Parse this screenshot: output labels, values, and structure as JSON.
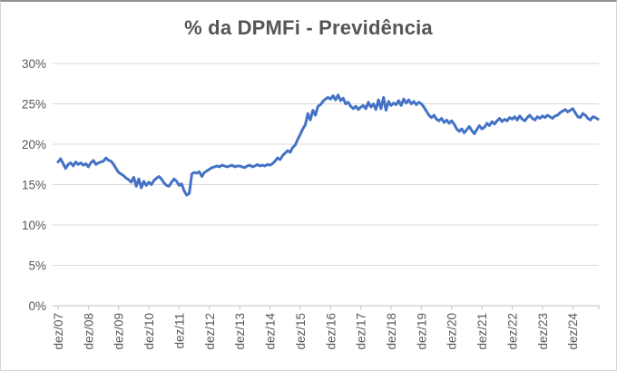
{
  "chart_data": {
    "type": "line",
    "title": "% da DPMFi - Previdência",
    "xlabel": "",
    "ylabel": "",
    "ylim": [
      0,
      30
    ],
    "y_tick_labels": [
      "0%",
      "5%",
      "10%",
      "15%",
      "20%",
      "25%",
      "30%"
    ],
    "y_tick_values": [
      0,
      5,
      10,
      15,
      20,
      25,
      30
    ],
    "x_tick_labels": [
      "dez/07",
      "dez/08",
      "dez/09",
      "dez/10",
      "dez/11",
      "dez/12",
      "dez/13",
      "dez/14",
      "dez/15",
      "dez/16",
      "dez/17",
      "dez/18",
      "dez/19",
      "dez/20",
      "dez/21",
      "dez/22",
      "dez/23",
      "dez/24"
    ],
    "x_label_interval": 12,
    "x_frequency": "monthly",
    "x_first_point": "dez/07",
    "grid": "horizontal",
    "legend": "none",
    "series_name": "% da DPMFi - Previdência",
    "values": [
      17.8,
      18.2,
      17.6,
      17.0,
      17.5,
      17.7,
      17.3,
      17.8,
      17.5,
      17.7,
      17.4,
      17.6,
      17.2,
      17.7,
      18.0,
      17.5,
      17.7,
      17.8,
      17.9,
      18.3,
      18.0,
      17.9,
      17.5,
      17.0,
      16.5,
      16.3,
      16.1,
      15.8,
      15.6,
      15.3,
      15.9,
      14.8,
      15.7,
      14.6,
      15.4,
      14.9,
      15.3,
      15.0,
      15.5,
      15.8,
      16.0,
      15.7,
      15.2,
      14.9,
      14.8,
      15.3,
      15.7,
      15.4,
      14.9,
      15.1,
      14.2,
      13.7,
      13.9,
      16.3,
      16.5,
      16.4,
      16.6,
      16.0,
      16.5,
      16.7,
      16.9,
      17.1,
      17.2,
      17.3,
      17.2,
      17.4,
      17.3,
      17.2,
      17.3,
      17.4,
      17.2,
      17.3,
      17.3,
      17.2,
      17.1,
      17.3,
      17.4,
      17.2,
      17.3,
      17.5,
      17.3,
      17.4,
      17.3,
      17.5,
      17.4,
      17.6,
      17.9,
      18.3,
      18.1,
      18.6,
      18.9,
      19.2,
      19.0,
      19.6,
      19.9,
      20.6,
      21.2,
      21.9,
      22.4,
      23.8,
      23.0,
      24.2,
      23.6,
      24.7,
      24.9,
      25.3,
      25.6,
      25.8,
      25.6,
      26.0,
      25.5,
      26.1,
      25.4,
      25.7,
      25.0,
      25.2,
      24.7,
      24.4,
      24.7,
      24.3,
      24.6,
      24.8,
      24.4,
      25.2,
      24.6,
      25.0,
      24.3,
      25.5,
      24.4,
      25.8,
      24.2,
      25.3,
      24.8,
      25.1,
      24.9,
      25.4,
      24.8,
      25.6,
      25.1,
      25.5,
      25.0,
      25.3,
      24.9,
      25.2,
      25.0,
      24.6,
      24.1,
      23.6,
      23.3,
      23.6,
      23.1,
      22.9,
      23.2,
      22.7,
      23.0,
      22.6,
      22.9,
      22.5,
      21.9,
      21.6,
      21.9,
      21.4,
      21.8,
      22.2,
      21.7,
      21.3,
      21.8,
      22.3,
      21.9,
      22.1,
      22.6,
      22.3,
      22.8,
      22.5,
      22.9,
      23.2,
      22.8,
      23.1,
      22.9,
      23.3,
      23.1,
      23.4,
      23.0,
      23.5,
      23.1,
      22.9,
      23.3,
      23.6,
      23.2,
      23.0,
      23.4,
      23.2,
      23.5,
      23.3,
      23.6,
      23.4,
      23.2,
      23.5,
      23.6,
      23.9,
      24.1,
      24.3,
      24.0,
      24.2,
      24.4,
      23.9,
      23.4,
      23.3,
      23.8,
      23.6,
      23.2,
      23.0,
      23.4,
      23.3,
      23.1
    ]
  },
  "colors": {
    "line": "#4472c4",
    "gridline": "#d9d9d9",
    "axis_line": "#bfbfbf",
    "axis_text": "#595959",
    "title_text": "#555555",
    "background": "#ffffff"
  }
}
